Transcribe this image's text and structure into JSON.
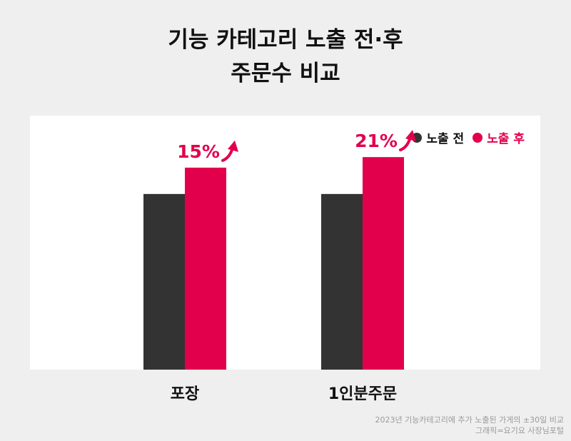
{
  "title_line1": "기능 카테고리 노출 전·후",
  "title_line2": "주문수 비교",
  "colors": {
    "before": "#333333",
    "after": "#e2004c",
    "panel": "#ffffff",
    "background": "#efefef"
  },
  "chart_data": {
    "type": "bar",
    "categories": [
      "포장",
      "1인분주문"
    ],
    "series": [
      {
        "name": "노출 전",
        "values": [
          100,
          100
        ]
      },
      {
        "name": "노출 후",
        "values": [
          115,
          121
        ]
      }
    ],
    "annotations": [
      "15%",
      "21%"
    ],
    "ylim": [
      0,
      130
    ],
    "legend": "top-right",
    "grid": false
  },
  "footnote_line1": "2023년 기능카테고리에 추가 노출된 가게의 ±30일 비교",
  "footnote_line2": "그래픽=요기요 사장님포털"
}
